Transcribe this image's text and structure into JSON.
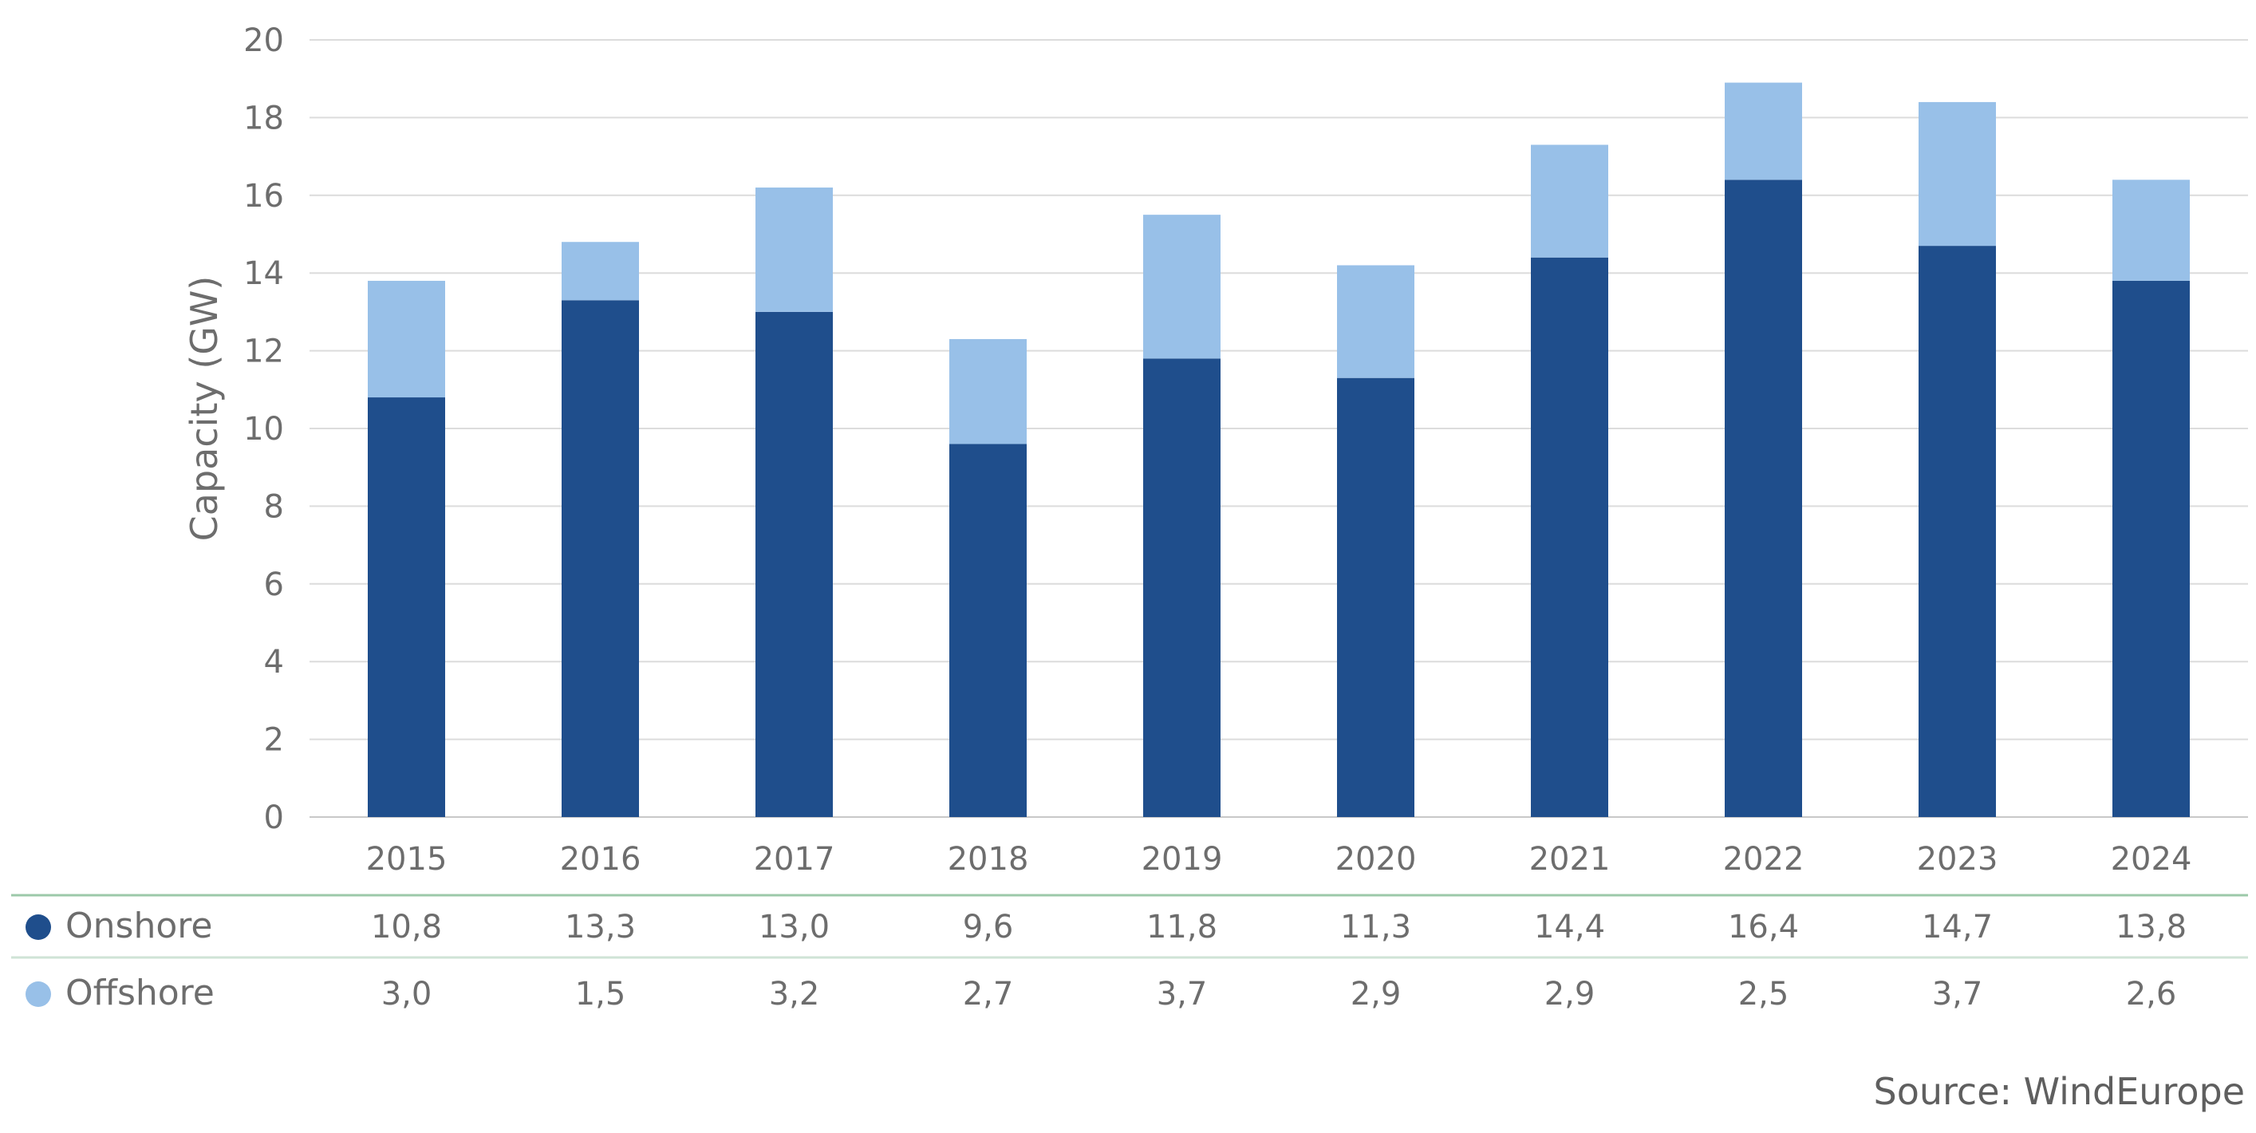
{
  "chart_data": {
    "type": "bar",
    "stacked": true,
    "categories": [
      "2015",
      "2016",
      "2017",
      "2018",
      "2019",
      "2020",
      "2021",
      "2022",
      "2023",
      "2024"
    ],
    "series": [
      {
        "name": "Onshore",
        "values": [
          10.8,
          13.3,
          13.0,
          9.6,
          11.8,
          11.3,
          14.4,
          16.4,
          14.7,
          13.8
        ],
        "labels": [
          "10,8",
          "13,3",
          "13,0",
          "9,6",
          "11,8",
          "11,3",
          "14,4",
          "16,4",
          "14,7",
          "13,8"
        ],
        "color": "#1f4e8c"
      },
      {
        "name": "Offshore",
        "values": [
          3.0,
          1.5,
          3.2,
          2.7,
          3.7,
          2.9,
          2.9,
          2.5,
          3.7,
          2.6
        ],
        "labels": [
          "3,0",
          "1,5",
          "3,2",
          "2,7",
          "3,7",
          "2,9",
          "2,9",
          "2,5",
          "3,7",
          "2,6"
        ],
        "color": "#98c0e8"
      }
    ],
    "ylabel": "Capacity (GW)",
    "xlabel": "",
    "ylim": [
      0,
      20
    ],
    "yticks": [
      "0",
      "2",
      "4",
      "6",
      "8",
      "10",
      "12",
      "14",
      "16",
      "18",
      "20"
    ],
    "grid": true,
    "legend": "data table below chart",
    "source": "Source: WindEurope"
  },
  "colors": {
    "text": "#6d6d6d",
    "grid": "#dcdcdc",
    "table_rule": "#9cc9a9",
    "table_rule_light": "#cfe3d6"
  }
}
